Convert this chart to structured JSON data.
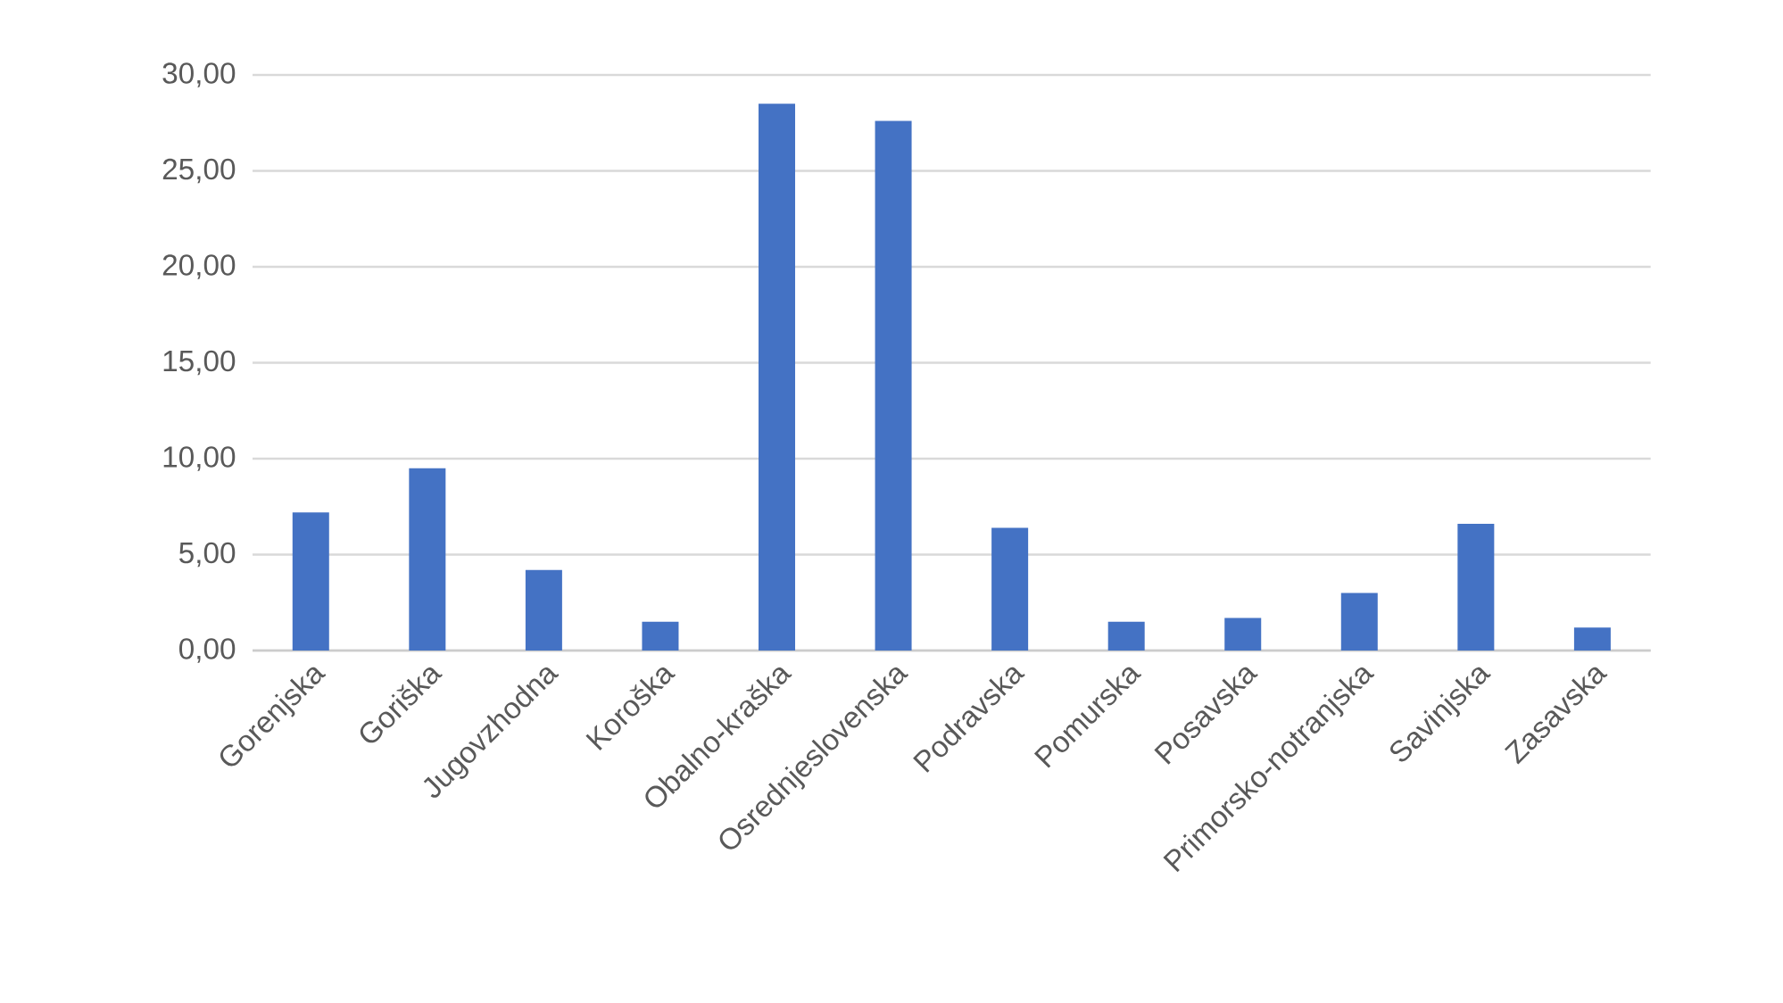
{
  "chart_data": {
    "type": "bar",
    "categories": [
      "Gorenjska",
      "Goriška",
      "Jugovzhodna",
      "Koroška",
      "Obalno-kraška",
      "Osrednjeslovenska",
      "Podravska",
      "Pomurska",
      "Posavska",
      "Primorsko-notranjska",
      "Savinjska",
      "Zasavska"
    ],
    "values": [
      7.2,
      9.5,
      4.2,
      1.5,
      28.5,
      27.6,
      6.4,
      1.5,
      1.7,
      3.0,
      6.6,
      1.2
    ],
    "color": "#4472c4",
    "ylim": [
      0,
      30
    ],
    "yticks": [
      {
        "value": 0,
        "label": "0,00"
      },
      {
        "value": 5,
        "label": "5,00"
      },
      {
        "value": 10,
        "label": "10,00"
      },
      {
        "value": 15,
        "label": "15,00"
      },
      {
        "value": 20,
        "label": "20,00"
      },
      {
        "value": 25,
        "label": "25,00"
      },
      {
        "value": 30,
        "label": "30,00"
      }
    ],
    "grid": "y"
  }
}
